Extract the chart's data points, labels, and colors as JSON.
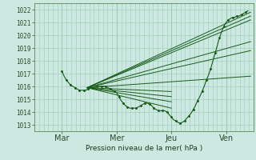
{
  "background_color": "#cce8e0",
  "grid_color": "#99ccbb",
  "line_color": "#1a5c1a",
  "xlabel": "Pression niveau de la mer( hPa )",
  "yticks": [
    1013,
    1014,
    1015,
    1016,
    1017,
    1018,
    1019,
    1020,
    1021,
    1022
  ],
  "xtick_labels": [
    "Mar",
    "Mer",
    "Jeu",
    "Ven"
  ],
  "xtick_positions": [
    0.5,
    1.5,
    2.5,
    3.5
  ],
  "ylim": [
    1012.5,
    1022.5
  ],
  "xlim": [
    0.0,
    4.0
  ],
  "observed_x": [
    0.5,
    0.54,
    0.58,
    0.62,
    0.66,
    0.7,
    0.74,
    0.78,
    0.82,
    0.86,
    0.9,
    0.94,
    0.98,
    1.02,
    1.06,
    1.1,
    1.14,
    1.18,
    1.22,
    1.26,
    1.3,
    1.34,
    1.38,
    1.42,
    1.46,
    1.5,
    1.54,
    1.58,
    1.62,
    1.66,
    1.7,
    1.74,
    1.78,
    1.82,
    1.86,
    1.9,
    1.94,
    1.98,
    2.02,
    2.06,
    2.1,
    2.14,
    2.18,
    2.22,
    2.26,
    2.3,
    2.34,
    2.38,
    2.42,
    2.46,
    2.5,
    2.54,
    2.58,
    2.62,
    2.66,
    2.7,
    2.74,
    2.78,
    2.82,
    2.86,
    2.9,
    2.94,
    2.98,
    3.02,
    3.06,
    3.1,
    3.14,
    3.18,
    3.22,
    3.26,
    3.3,
    3.34,
    3.38,
    3.42,
    3.46,
    3.5,
    3.54,
    3.58,
    3.62,
    3.66,
    3.7,
    3.74,
    3.78,
    3.82,
    3.86,
    3.9
  ],
  "observed_y": [
    1017.2,
    1016.8,
    1016.5,
    1016.3,
    1016.1,
    1016.0,
    1015.9,
    1015.8,
    1015.7,
    1015.7,
    1015.7,
    1015.7,
    1015.8,
    1015.9,
    1015.9,
    1015.9,
    1016.0,
    1016.0,
    1016.0,
    1016.0,
    1016.0,
    1015.9,
    1015.8,
    1015.7,
    1015.6,
    1015.5,
    1015.2,
    1014.9,
    1014.7,
    1014.5,
    1014.4,
    1014.3,
    1014.3,
    1014.3,
    1014.3,
    1014.4,
    1014.5,
    1014.6,
    1014.7,
    1014.7,
    1014.6,
    1014.5,
    1014.3,
    1014.2,
    1014.1,
    1014.1,
    1014.1,
    1014.1,
    1014.0,
    1013.8,
    1013.6,
    1013.4,
    1013.3,
    1013.2,
    1013.1,
    1013.2,
    1013.3,
    1013.5,
    1013.7,
    1013.9,
    1014.2,
    1014.5,
    1014.9,
    1015.2,
    1015.6,
    1016.0,
    1016.5,
    1016.9,
    1017.4,
    1018.0,
    1018.6,
    1019.2,
    1019.8,
    1020.3,
    1020.7,
    1021.0,
    1021.2,
    1021.3,
    1021.4,
    1021.4,
    1021.5,
    1021.5,
    1021.6,
    1021.7,
    1021.8,
    1021.9
  ],
  "pivot_x": 0.96,
  "pivot_y": 1015.9,
  "fan_endpoints": [
    [
      3.95,
      1021.8
    ],
    [
      3.95,
      1021.5
    ],
    [
      3.95,
      1021.2
    ],
    [
      3.95,
      1019.5
    ],
    [
      3.95,
      1018.8
    ],
    [
      3.95,
      1016.8
    ],
    [
      2.5,
      1014.3
    ],
    [
      2.5,
      1014.8
    ],
    [
      2.5,
      1015.2
    ],
    [
      2.5,
      1015.6
    ]
  ]
}
